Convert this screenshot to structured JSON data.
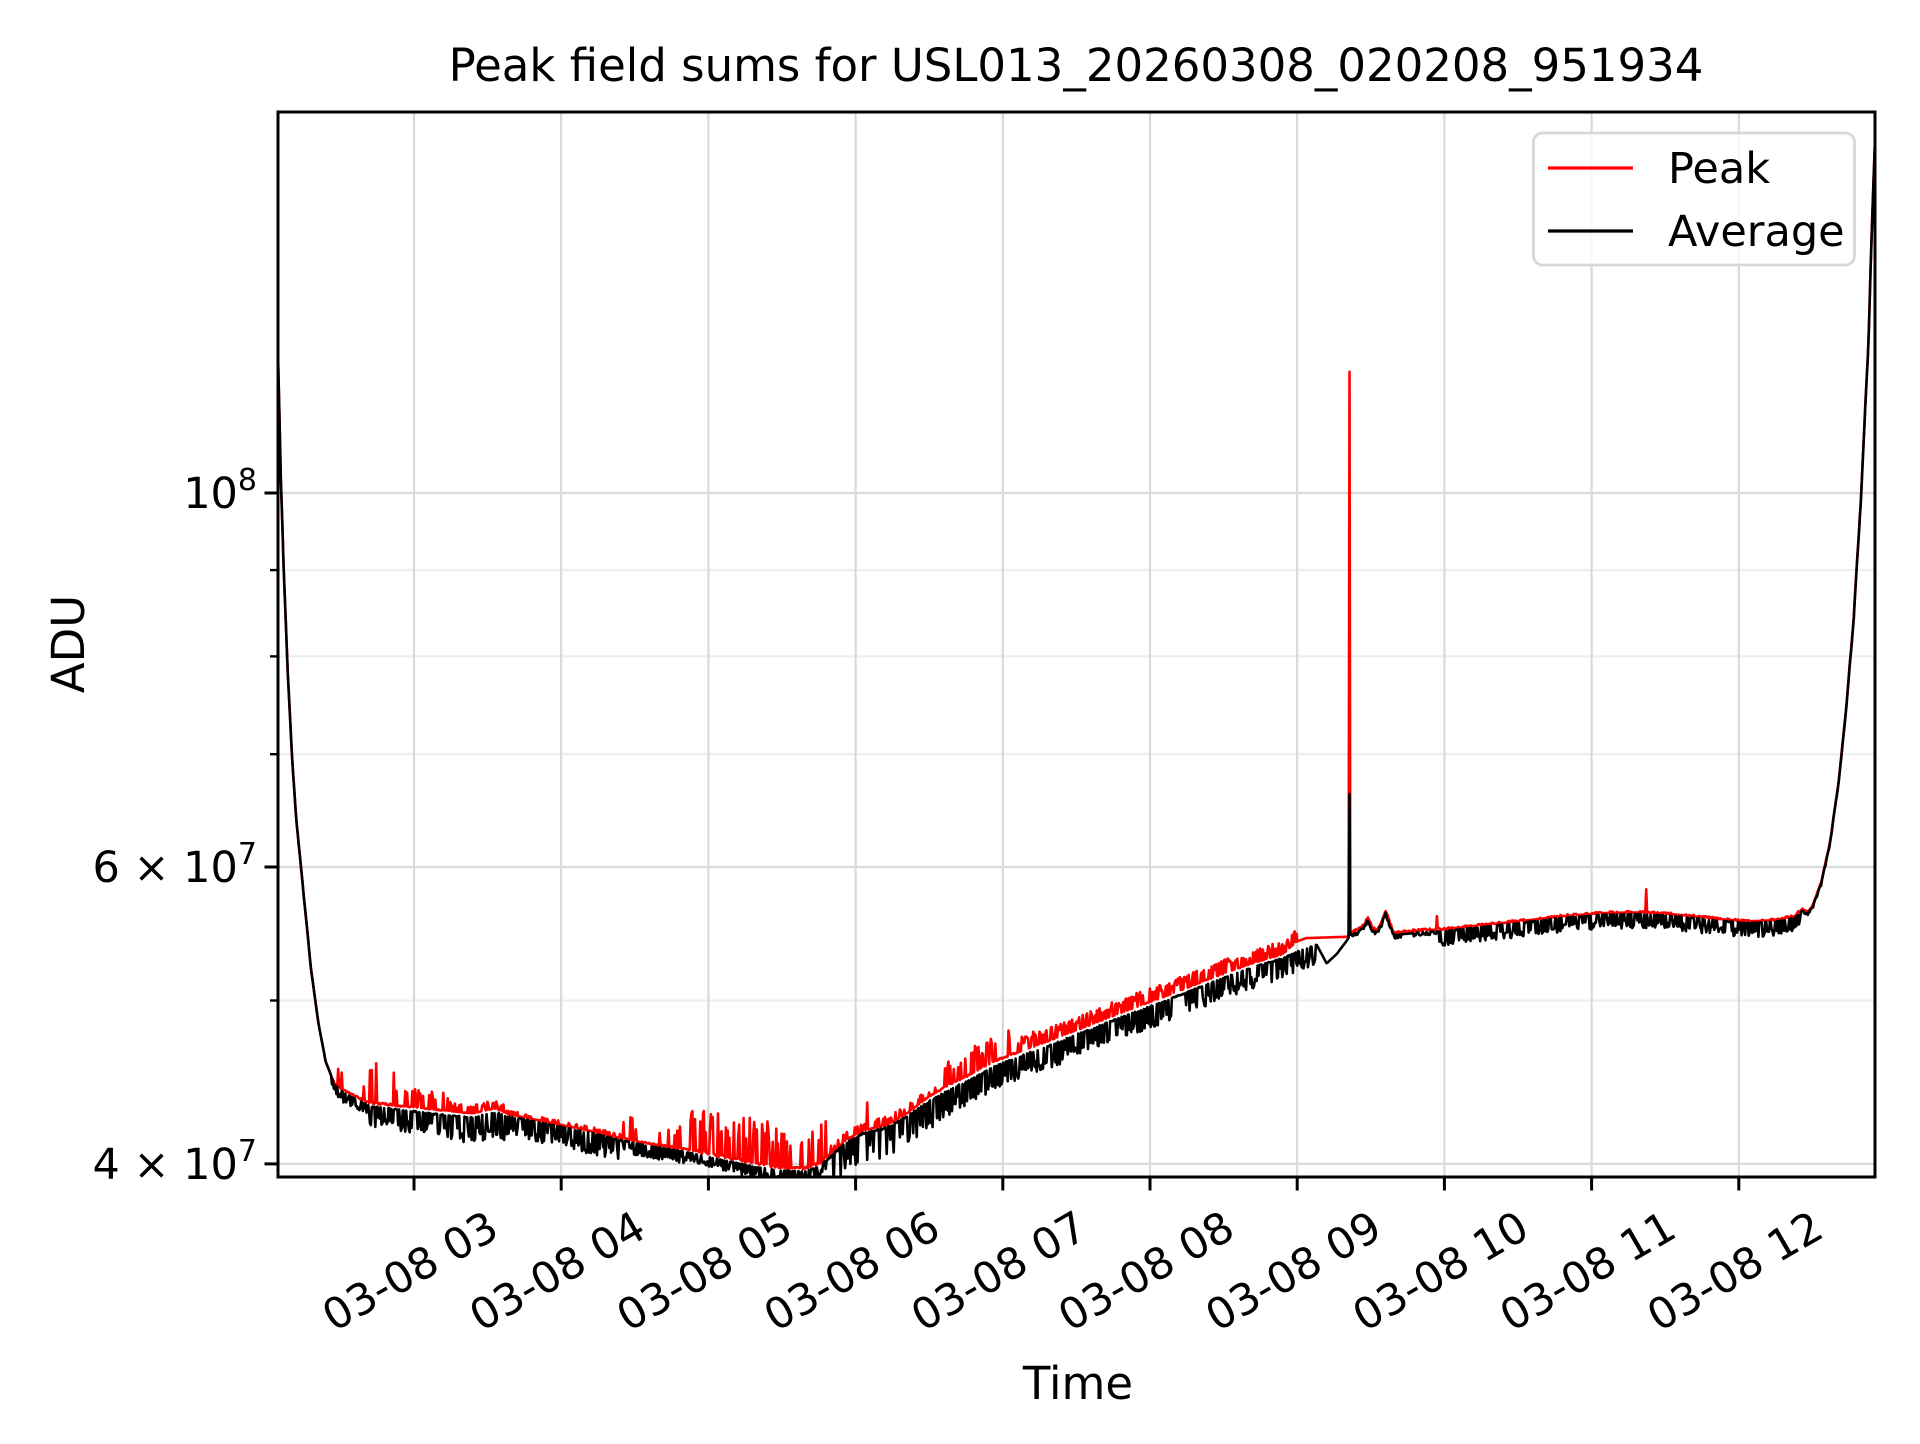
{
  "title": "Peak field sums for USL013_20260308_020208_951934",
  "xlabel": "Time",
  "ylabel": "ADU",
  "legend": {
    "items": [
      {
        "label": "Peak",
        "color": "#ff0000"
      },
      {
        "label": "Average",
        "color": "#000000"
      }
    ]
  },
  "chart_data": {
    "type": "line",
    "title": "Peak field sums for USL013_20260308_020208_951934",
    "xlabel": "Time",
    "ylabel": "ADU",
    "yscale": "log",
    "ylim_adu": [
      39300000,
      168300000
    ],
    "x_range_hours_on_03_08": [
      2.077,
      12.933
    ],
    "value_unit": "1e7 ADU",
    "x_axis": {
      "ticks": [
        {
          "t": 3,
          "label": "03-08 03"
        },
        {
          "t": 4,
          "label": "03-08 04"
        },
        {
          "t": 5,
          "label": "03-08 05"
        },
        {
          "t": 6,
          "label": "03-08 06"
        },
        {
          "t": 7,
          "label": "03-08 07"
        },
        {
          "t": 8,
          "label": "03-08 08"
        },
        {
          "t": 9,
          "label": "03-08 09"
        },
        {
          "t": 10,
          "label": "03-08 10"
        },
        {
          "t": 11,
          "label": "03-08 11"
        },
        {
          "t": 12,
          "label": "03-08 12"
        }
      ]
    },
    "y_axis": {
      "major_ticks": [
        {
          "value": 10,
          "label_base": "10",
          "label_exp": "8"
        },
        {
          "value": 6,
          "label_base": "6 × 10",
          "label_exp": "7"
        },
        {
          "value": 4,
          "label_base": "4 × 10",
          "label_exp": "7"
        }
      ],
      "minor_ticks": [
        9,
        8,
        7,
        5
      ]
    },
    "style": {
      "grid_major_color": "#d9d9d9",
      "grid_minor_color": "#ececec",
      "peak_color": "#ff0000",
      "average_color": "#000000"
    },
    "sampling": {
      "t_start": 2.077,
      "t_end": 12.933,
      "dt_hours": 0.006
    },
    "series": [
      {
        "name": "Peak",
        "color": "#ff0000",
        "anchors": [
          [
            2.077,
            12.0
          ],
          [
            2.095,
            10.2
          ],
          [
            2.115,
            9.0
          ],
          [
            2.14,
            7.9
          ],
          [
            2.17,
            7.0
          ],
          [
            2.2,
            6.4
          ],
          [
            2.25,
            5.78
          ],
          [
            2.3,
            5.22
          ],
          [
            2.35,
            4.85
          ],
          [
            2.4,
            4.6
          ],
          [
            2.46,
            4.46
          ],
          [
            2.52,
            4.42
          ],
          [
            2.6,
            4.385
          ],
          [
            2.7,
            4.34
          ],
          [
            2.85,
            4.33
          ],
          [
            3.0,
            4.32
          ],
          [
            3.2,
            4.3
          ],
          [
            3.4,
            4.285
          ],
          [
            3.55,
            4.315
          ],
          [
            3.65,
            4.278
          ],
          [
            3.8,
            4.253
          ],
          [
            4.0,
            4.218
          ],
          [
            4.2,
            4.183
          ],
          [
            4.4,
            4.143
          ],
          [
            4.6,
            4.108
          ],
          [
            4.8,
            4.083
          ],
          [
            5.0,
            4.05
          ],
          [
            5.2,
            4.015
          ],
          [
            5.35,
            3.99
          ],
          [
            5.5,
            3.975
          ],
          [
            5.65,
            3.97
          ],
          [
            5.75,
            3.995
          ],
          [
            5.85,
            4.07
          ],
          [
            5.95,
            4.14
          ],
          [
            6.05,
            4.185
          ],
          [
            6.22,
            4.22
          ],
          [
            6.35,
            4.285
          ],
          [
            6.5,
            4.385
          ],
          [
            6.65,
            4.46
          ],
          [
            6.8,
            4.525
          ],
          [
            6.95,
            4.6
          ],
          [
            7.1,
            4.655
          ],
          [
            7.3,
            4.725
          ],
          [
            7.5,
            4.8
          ],
          [
            7.7,
            4.875
          ],
          [
            7.9,
            4.95
          ],
          [
            8.1,
            5.025
          ],
          [
            8.3,
            5.105
          ],
          [
            8.5,
            5.185
          ],
          [
            8.7,
            5.26
          ],
          [
            8.9,
            5.325
          ],
          [
            9.0,
            5.42
          ],
          [
            9.06,
            5.445
          ],
          [
            9.34,
            5.455
          ],
          [
            9.36,
            5.482
          ],
          [
            9.42,
            5.512
          ],
          [
            9.455,
            5.542
          ],
          [
            9.48,
            5.602
          ],
          [
            9.515,
            5.512
          ],
          [
            9.545,
            5.502
          ],
          [
            9.575,
            5.572
          ],
          [
            9.6,
            5.652
          ],
          [
            9.63,
            5.552
          ],
          [
            9.66,
            5.477
          ],
          [
            9.72,
            5.487
          ],
          [
            9.85,
            5.502
          ],
          [
            10.0,
            5.51
          ],
          [
            10.2,
            5.535
          ],
          [
            10.5,
            5.57
          ],
          [
            10.8,
            5.61
          ],
          [
            11.1,
            5.635
          ],
          [
            11.35,
            5.64
          ],
          [
            11.6,
            5.62
          ],
          [
            11.85,
            5.59
          ],
          [
            12.05,
            5.57
          ],
          [
            12.25,
            5.58
          ],
          [
            12.38,
            5.61
          ],
          [
            12.43,
            5.665
          ],
          [
            12.465,
            5.64
          ],
          [
            12.5,
            5.687
          ],
          [
            12.56,
            5.877
          ],
          [
            12.62,
            6.207
          ],
          [
            12.68,
            6.757
          ],
          [
            12.73,
            7.457
          ],
          [
            12.78,
            8.407
          ],
          [
            12.83,
            9.907
          ],
          [
            12.88,
            12.207
          ],
          [
            12.933,
            16.9
          ]
        ],
        "noise_windows": [
          [
            2.44,
            2.7,
            0.17,
            0.12
          ],
          [
            2.7,
            2.88,
            0.27,
            0.35
          ],
          [
            2.88,
            3.25,
            0.11,
            0.25
          ],
          [
            3.25,
            3.62,
            0.05,
            0.5
          ],
          [
            3.62,
            4.42,
            0.025,
            0.25
          ],
          [
            4.42,
            4.86,
            0.15,
            0.1
          ],
          [
            4.86,
            5.45,
            0.26,
            0.3
          ],
          [
            5.45,
            5.8,
            0.22,
            0.28
          ],
          [
            5.8,
            6.55,
            0.05,
            0.25
          ],
          [
            6.55,
            6.78,
            0.13,
            0.3
          ],
          [
            6.78,
            7.08,
            0.17,
            0.4
          ],
          [
            7.08,
            9.0,
            0.1,
            0.5
          ],
          [
            9.36,
            9.95,
            0.015,
            0.3
          ],
          [
            9.95,
            12.42,
            0.012,
            0.3
          ],
          [
            12.42,
            12.94,
            0.008,
            0.2
          ]
        ],
        "spikes": [
          [
            4.805,
            4.21
          ],
          [
            5.28,
            4.26
          ],
          [
            6.08,
            4.35
          ],
          [
            6.63,
            4.6
          ],
          [
            9.352,
            11.8
          ],
          [
            9.95,
            5.61
          ],
          [
            11.37,
            5.82
          ]
        ]
      },
      {
        "name": "Average",
        "color": "#000000",
        "anchors": [
          [
            2.077,
            12.0
          ],
          [
            2.095,
            10.2
          ],
          [
            2.115,
            9.0
          ],
          [
            2.14,
            7.9
          ],
          [
            2.17,
            7.0
          ],
          [
            2.2,
            6.4
          ],
          [
            2.25,
            5.78
          ],
          [
            2.3,
            5.22
          ],
          [
            2.35,
            4.85
          ],
          [
            2.4,
            4.6
          ],
          [
            2.46,
            4.46
          ],
          [
            2.52,
            4.41
          ],
          [
            2.6,
            4.375
          ],
          [
            2.7,
            4.33
          ],
          [
            2.85,
            4.315
          ],
          [
            3.0,
            4.3
          ],
          [
            3.2,
            4.28
          ],
          [
            3.4,
            4.265
          ],
          [
            3.55,
            4.295
          ],
          [
            3.65,
            4.27
          ],
          [
            3.8,
            4.245
          ],
          [
            4.0,
            4.21
          ],
          [
            4.2,
            4.175
          ],
          [
            4.4,
            4.135
          ],
          [
            4.6,
            4.1
          ],
          [
            4.8,
            4.075
          ],
          [
            5.0,
            4.04
          ],
          [
            5.2,
            4.005
          ],
          [
            5.35,
            3.98
          ],
          [
            5.5,
            3.965
          ],
          [
            5.65,
            3.96
          ],
          [
            5.75,
            3.985
          ],
          [
            5.85,
            4.06
          ],
          [
            5.95,
            4.13
          ],
          [
            6.05,
            4.175
          ],
          [
            6.22,
            4.21
          ],
          [
            6.35,
            4.275
          ],
          [
            6.5,
            4.36
          ],
          [
            6.65,
            4.435
          ],
          [
            6.8,
            4.5
          ],
          [
            6.95,
            4.575
          ],
          [
            7.1,
            4.63
          ],
          [
            7.3,
            4.7
          ],
          [
            7.5,
            4.775
          ],
          [
            7.7,
            4.85
          ],
          [
            7.9,
            4.925
          ],
          [
            8.1,
            5.0
          ],
          [
            8.3,
            5.08
          ],
          [
            8.5,
            5.16
          ],
          [
            8.7,
            5.235
          ],
          [
            8.9,
            5.3
          ],
          [
            9.05,
            5.37
          ],
          [
            9.13,
            5.4
          ],
          [
            9.2,
            5.26
          ],
          [
            9.27,
            5.33
          ],
          [
            9.34,
            5.43
          ],
          [
            9.36,
            5.47
          ],
          [
            9.42,
            5.5
          ],
          [
            9.455,
            5.53
          ],
          [
            9.48,
            5.59
          ],
          [
            9.515,
            5.5
          ],
          [
            9.545,
            5.49
          ],
          [
            9.575,
            5.56
          ],
          [
            9.6,
            5.64
          ],
          [
            9.63,
            5.54
          ],
          [
            9.66,
            5.465
          ],
          [
            9.72,
            5.475
          ],
          [
            9.85,
            5.49
          ],
          [
            10.0,
            5.5
          ],
          [
            10.2,
            5.525
          ],
          [
            10.5,
            5.56
          ],
          [
            10.8,
            5.6
          ],
          [
            11.1,
            5.625
          ],
          [
            11.35,
            5.63
          ],
          [
            11.6,
            5.61
          ],
          [
            11.85,
            5.58
          ],
          [
            12.05,
            5.56
          ],
          [
            12.25,
            5.57
          ],
          [
            12.38,
            5.6
          ],
          [
            12.43,
            5.655
          ],
          [
            12.465,
            5.63
          ],
          [
            12.5,
            5.68
          ],
          [
            12.56,
            5.87
          ],
          [
            12.62,
            6.2
          ],
          [
            12.68,
            6.75
          ],
          [
            12.73,
            7.45
          ],
          [
            12.78,
            8.4
          ],
          [
            12.83,
            9.9
          ],
          [
            12.88,
            12.2
          ],
          [
            12.933,
            16.9
          ]
        ],
        "noise_windows": [
          [
            2.44,
            2.7,
            0.06,
            0.5
          ],
          [
            2.7,
            3.25,
            0.13,
            0.55
          ],
          [
            3.25,
            3.62,
            0.15,
            0.6
          ],
          [
            3.62,
            4.42,
            0.12,
            0.5
          ],
          [
            4.42,
            4.86,
            0.07,
            0.5
          ],
          [
            4.86,
            5.8,
            0.06,
            0.55
          ],
          [
            5.8,
            6.55,
            0.17,
            0.3
          ],
          [
            6.55,
            9.13,
            0.15,
            0.55
          ],
          [
            9.36,
            9.95,
            0.025,
            0.4
          ],
          [
            9.95,
            12.42,
            0.11,
            0.55
          ],
          [
            12.42,
            12.94,
            0.02,
            0.3
          ]
        ],
        "spikes": [
          [
            9.352,
            6.63
          ]
        ]
      }
    ]
  }
}
